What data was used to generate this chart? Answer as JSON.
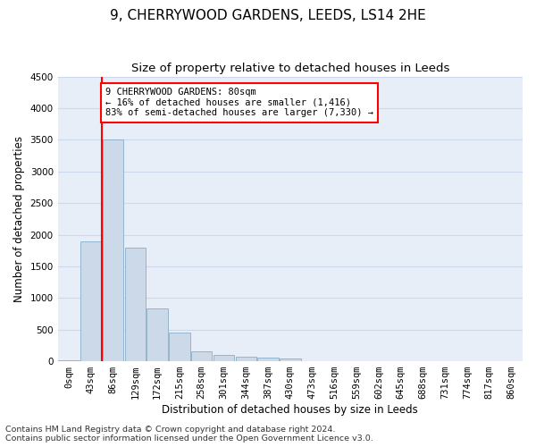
{
  "title": "9, CHERRYWOOD GARDENS, LEEDS, LS14 2HE",
  "subtitle": "Size of property relative to detached houses in Leeds",
  "xlabel": "Distribution of detached houses by size in Leeds",
  "ylabel": "Number of detached properties",
  "footer_line1": "Contains HM Land Registry data © Crown copyright and database right 2024.",
  "footer_line2": "Contains public sector information licensed under the Open Government Licence v3.0.",
  "annotation_line1": "9 CHERRYWOOD GARDENS: 80sqm",
  "annotation_line2": "← 16% of detached houses are smaller (1,416)",
  "annotation_line3": "83% of semi-detached houses are larger (7,330) →",
  "subject_bar_index": 2,
  "bar_color": "#ccd9e8",
  "bar_edge_color": "#8aaec8",
  "annotation_box_color": "red",
  "categories": [
    "0sqm",
    "43sqm",
    "86sqm",
    "129sqm",
    "172sqm",
    "215sqm",
    "258sqm",
    "301sqm",
    "344sqm",
    "387sqm",
    "430sqm",
    "473sqm",
    "516sqm",
    "559sqm",
    "602sqm",
    "645sqm",
    "688sqm",
    "731sqm",
    "774sqm",
    "817sqm",
    "860sqm"
  ],
  "values": [
    20,
    1900,
    3500,
    1800,
    830,
    450,
    160,
    95,
    70,
    60,
    50,
    0,
    0,
    0,
    0,
    0,
    0,
    0,
    0,
    0,
    0
  ],
  "ylim": [
    0,
    4500
  ],
  "yticks": [
    0,
    500,
    1000,
    1500,
    2000,
    2500,
    3000,
    3500,
    4000,
    4500
  ],
  "grid_color": "#ccd8ee",
  "bg_color": "#e8eef8",
  "title_fontsize": 11,
  "subtitle_fontsize": 9.5,
  "axis_label_fontsize": 8.5,
  "tick_fontsize": 7.5,
  "footer_fontsize": 6.8
}
